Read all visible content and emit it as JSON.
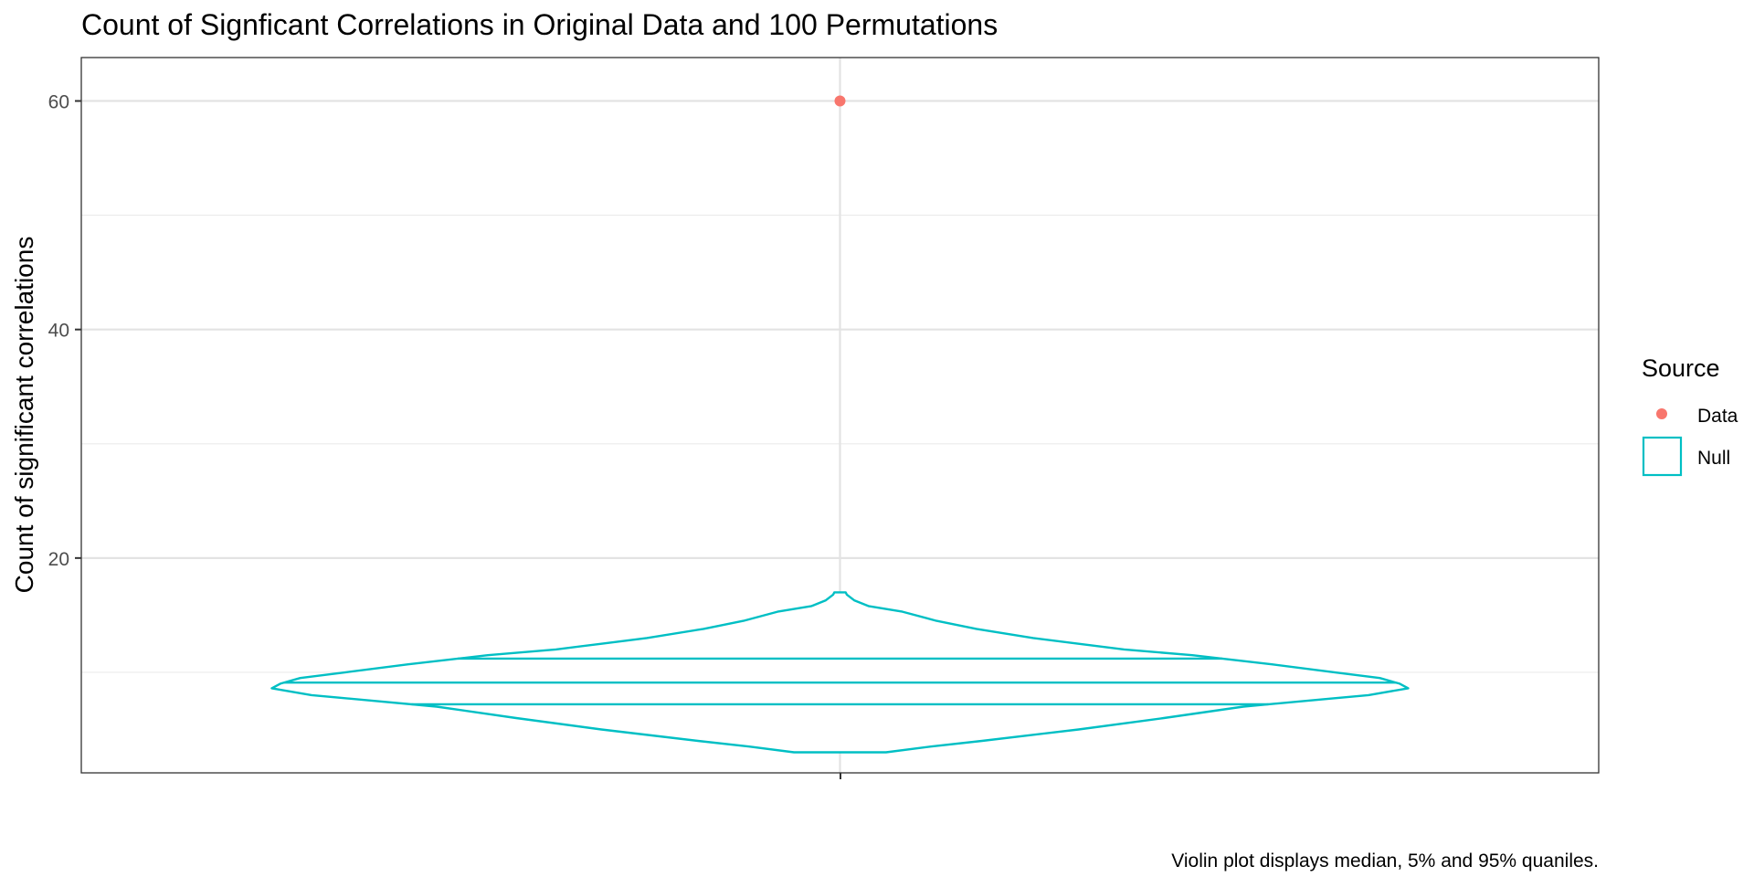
{
  "chart_data": {
    "type": "violin",
    "title": "Count of Signficant Correlations in Original Data and 100 Permutations",
    "xlabel": "",
    "ylabel": "Count of significant correlations",
    "caption": "Violin plot displays median, 5% and 95% quaniles.",
    "ylim": [
      1.2,
      63.8
    ],
    "yticks": [
      20,
      40,
      60
    ],
    "grid": true,
    "legend": {
      "title": "Source",
      "position": "right",
      "entries": [
        {
          "label": "Data",
          "key": "point",
          "color": "#F8766D"
        },
        {
          "label": "Null",
          "key": "box",
          "color": "#00BFC4"
        }
      ]
    },
    "series": [
      {
        "name": "Data",
        "kind": "point",
        "color": "#F8766D",
        "values": [
          60
        ]
      },
      {
        "name": "Null",
        "kind": "violin",
        "color": "#00BFC4",
        "min": 3,
        "max": 17,
        "quantiles": [
          7.2,
          9.1,
          11.2
        ],
        "density_profile": [
          {
            "y": 3.0,
            "w": 0.081
          },
          {
            "y": 3.5,
            "w": 0.16
          },
          {
            "y": 4.0,
            "w": 0.25
          },
          {
            "y": 5.0,
            "w": 0.42
          },
          {
            "y": 6.0,
            "w": 0.57
          },
          {
            "y": 7.0,
            "w": 0.71
          },
          {
            "y": 7.5,
            "w": 0.82
          },
          {
            "y": 8.0,
            "w": 0.93
          },
          {
            "y": 8.6,
            "w": 1.0
          },
          {
            "y": 9.0,
            "w": 0.985
          },
          {
            "y": 9.5,
            "w": 0.95
          },
          {
            "y": 10.0,
            "w": 0.87
          },
          {
            "y": 10.7,
            "w": 0.76
          },
          {
            "y": 11.5,
            "w": 0.62
          },
          {
            "y": 12.0,
            "w": 0.5
          },
          {
            "y": 12.5,
            "w": 0.42
          },
          {
            "y": 13.0,
            "w": 0.34
          },
          {
            "y": 13.8,
            "w": 0.24
          },
          {
            "y": 14.5,
            "w": 0.17
          },
          {
            "y": 15.3,
            "w": 0.11
          },
          {
            "y": 15.8,
            "w": 0.05
          },
          {
            "y": 16.3,
            "w": 0.025
          },
          {
            "y": 16.8,
            "w": 0.012
          },
          {
            "y": 17.0,
            "w": 0.01
          }
        ]
      }
    ]
  }
}
